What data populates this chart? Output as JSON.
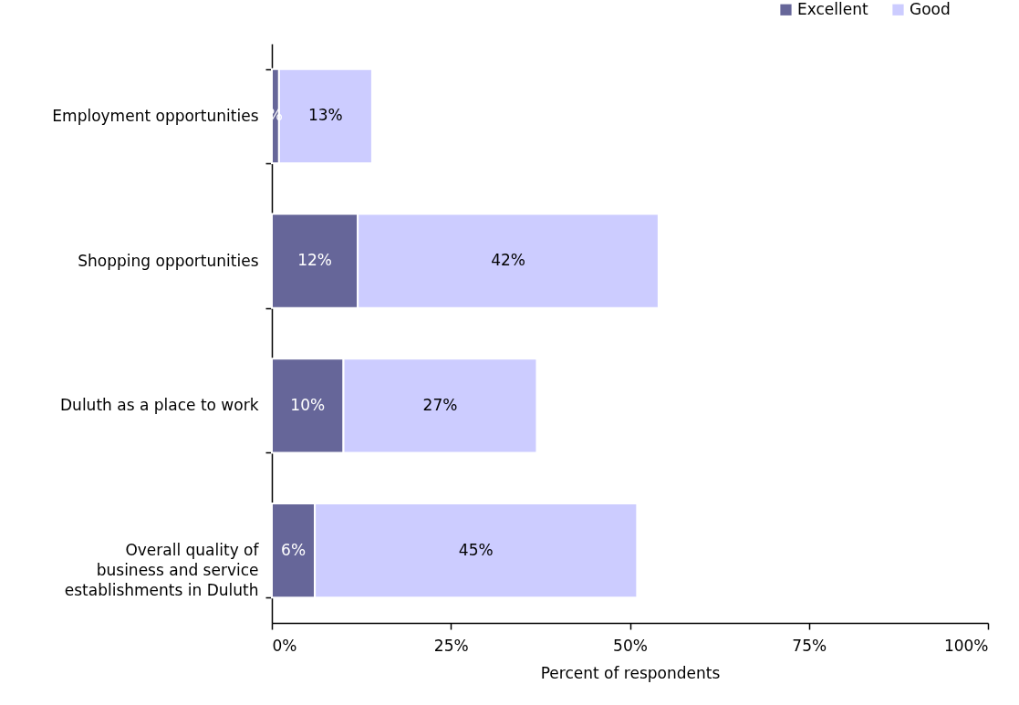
{
  "chart_data": {
    "type": "bar",
    "orientation": "horizontal",
    "stacked": true,
    "categories": [
      "Employment opportunities",
      "Shopping opportunities",
      "Duluth as a place to work",
      "Overall quality of business and service establishments in Duluth"
    ],
    "series": [
      {
        "name": "Excellent",
        "color": "#666699",
        "values": [
          1,
          12,
          10,
          6
        ],
        "value_labels": [
          "%",
          "12%",
          "10%",
          "6%"
        ]
      },
      {
        "name": "Good",
        "color": "#ccccff",
        "values": [
          13,
          42,
          27,
          45
        ],
        "value_labels": [
          "13%",
          "42%",
          "27%",
          "45%"
        ]
      }
    ],
    "xlabel": "Percent of respondents",
    "xlim": [
      0,
      100
    ],
    "xticks": [
      {
        "value": 0,
        "label": "0%"
      },
      {
        "value": 25,
        "label": "25%"
      },
      {
        "value": 50,
        "label": "50%"
      },
      {
        "value": 75,
        "label": "75%"
      },
      {
        "value": 100,
        "label": "100%"
      }
    ],
    "legend": "top right",
    "grid": false
  }
}
